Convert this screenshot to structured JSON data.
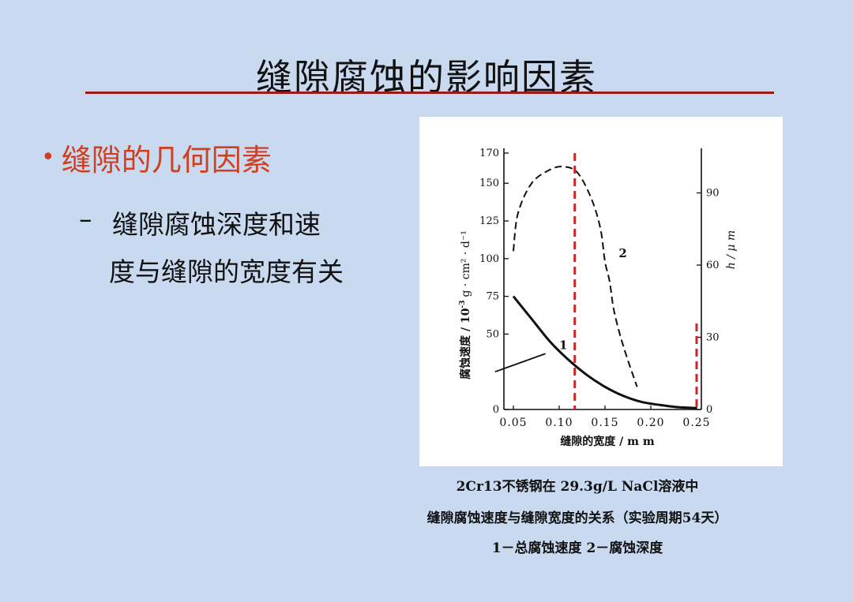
{
  "slide": {
    "title": "缝隙腐蚀的影响因素",
    "bullet": "缝隙的几何因素",
    "bullet_color": "#d04020",
    "sub_dash": "–",
    "sub_line1": "缝隙腐蚀深度和速",
    "sub_line2": "度与缝隙的宽度有关",
    "rule_color": "#9b1b1b",
    "background": "#c9daf0"
  },
  "captions": [
    "2Cr13不锈钢在 29.3g/L NaCl溶液中",
    "缝隙腐蚀速度与缝隙宽度的关系（实验周期54天）",
    "1－总腐蚀速度 2－腐蚀深度"
  ],
  "chart_data": {
    "type": "line",
    "xlabel": "缝隙的宽度 / m m",
    "ylabel": "腐蚀速度 / 10",
    "ylabel_units": "g · cm² · d⁻¹",
    "ylabel_exp": "-3",
    "y2label": "h / μ m",
    "xlim": [
      0.05,
      0.25
    ],
    "ylim": [
      0,
      170
    ],
    "y2lim": [
      0,
      100
    ],
    "x_ticks": [
      0.05,
      0.1,
      0.15,
      0.2,
      0.25
    ],
    "x_tick_labels": [
      "0.05",
      "0.10",
      "0.15",
      "0.20",
      "0.25"
    ],
    "y_ticks": [
      0,
      50,
      75,
      100,
      125,
      150,
      170
    ],
    "y_tick_labels": [
      "0",
      "50",
      "75",
      "100",
      "125",
      "150",
      "170"
    ],
    "y2_ticks": [
      0,
      30,
      60,
      90
    ],
    "y2_tick_labels": [
      "0",
      "30",
      "60",
      "90"
    ],
    "series": [
      {
        "name": "1",
        "style": "solid",
        "axis": "left",
        "x": [
          0.05,
          0.07,
          0.09,
          0.11,
          0.13,
          0.15,
          0.17,
          0.19,
          0.21,
          0.23,
          0.25
        ],
        "y": [
          75,
          60,
          45,
          33,
          23,
          15,
          9,
          5,
          3,
          1.5,
          1
        ]
      },
      {
        "name": "2",
        "style": "dashed",
        "axis": "left",
        "x": [
          0.05,
          0.055,
          0.07,
          0.09,
          0.105,
          0.12,
          0.135,
          0.145,
          0.15,
          0.155,
          0.16,
          0.17,
          0.185
        ],
        "y": [
          105,
          130,
          150,
          159,
          161,
          157,
          140,
          120,
          98,
          85,
          65,
          42,
          15
        ]
      }
    ],
    "reference_lines": [
      {
        "x": 0.117,
        "y_top": 170,
        "color": "#c62828"
      },
      {
        "x": 0.25,
        "y_top": 57,
        "color": "#c62828"
      }
    ],
    "pointer_line": {
      "x": [
        0.03,
        0.085
      ],
      "y": [
        25,
        37
      ]
    },
    "curve_labels": [
      {
        "text": "1",
        "x": 0.1,
        "y": 40
      },
      {
        "text": "2",
        "x": 0.165,
        "y": 101
      }
    ],
    "grid": false
  }
}
